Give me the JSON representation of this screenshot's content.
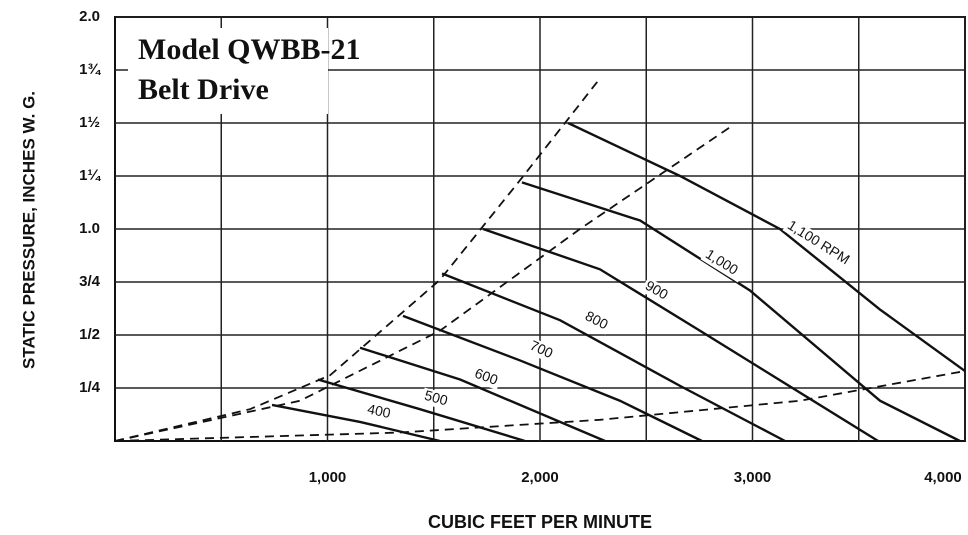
{
  "chart_data": {
    "type": "line",
    "title": "Model QWBB-21",
    "subtitle": "Belt Drive",
    "x_label": "CUBIC FEET PER MINUTE",
    "y_label": "STATIC PRESSURE, INCHES W. G.",
    "xlim": [
      0,
      4000
    ],
    "ylim": [
      0,
      2
    ],
    "xticks": [
      {
        "value": 1000,
        "label": "1,000"
      },
      {
        "value": 2000,
        "label": "2,000"
      },
      {
        "value": 3000,
        "label": "3,000"
      },
      {
        "value": 4000,
        "label": "4,000"
      }
    ],
    "xgrid_minor": [
      500,
      1500,
      2500,
      3500
    ],
    "yticks": [
      {
        "value": 0.25,
        "label": "1/4"
      },
      {
        "value": 0.5,
        "label": "1/2"
      },
      {
        "value": 0.75,
        "label": "3/4"
      },
      {
        "value": 1,
        "label": "1.0"
      },
      {
        "value": 1.25,
        "label": "1¼"
      },
      {
        "value": 1.5,
        "label": "1½"
      },
      {
        "value": 1.75,
        "label": "1¾"
      },
      {
        "value": 2,
        "label": "2.0"
      }
    ],
    "grid": true,
    "color": "#111111",
    "series": [
      {
        "name": "400",
        "x": [
          739,
          1153,
          1529
        ],
        "values": [
          0.17,
          0.09,
          0
        ]
      },
      {
        "name": "500",
        "x": [
          955,
          1435,
          1929
        ],
        "values": [
          0.29,
          0.15,
          0
        ]
      },
      {
        "name": "600",
        "x": [
          1153,
          1624,
          2306
        ],
        "values": [
          0.44,
          0.29,
          0
        ]
      },
      {
        "name": "700",
        "x": [
          1355,
          1906,
          2376,
          2762
        ],
        "values": [
          0.59,
          0.38,
          0.19,
          0
        ]
      },
      {
        "name": "800",
        "x": [
          1539,
          2094,
          2659,
          3153
        ],
        "values": [
          0.79,
          0.57,
          0.26,
          0
        ]
      },
      {
        "name": "900",
        "x": [
          1732,
          2282,
          2753,
          3591
        ],
        "values": [
          1.0,
          0.81,
          0.52,
          0
        ]
      },
      {
        "name": "1,000",
        "x": [
          1915,
          2471,
          2988,
          3600,
          3976
        ],
        "values": [
          1.22,
          1.04,
          0.71,
          0.19,
          0
        ]
      },
      {
        "name": "1,100 RPM",
        "x": [
          2132,
          2659,
          3129,
          3600,
          4000
        ],
        "values": [
          1.5,
          1.25,
          1.0,
          0.62,
          0.33
        ]
      },
      {
        "dashed": true,
        "x": [
          0,
          635,
          1012,
          1529,
          1906,
          2282
        ],
        "values": [
          0,
          0.15,
          0.31,
          0.76,
          1.23,
          1.71
        ]
      },
      {
        "dashed": true,
        "x": [
          0,
          871,
          1529,
          2188,
          2894
        ],
        "values": [
          0,
          0.19,
          0.52,
          1.0,
          1.48
        ]
      },
      {
        "dashed": true,
        "x": [
          0,
          1341,
          2282,
          3224,
          4000
        ],
        "values": [
          0,
          0.04,
          0.1,
          0.19,
          0.33
        ]
      }
    ]
  }
}
